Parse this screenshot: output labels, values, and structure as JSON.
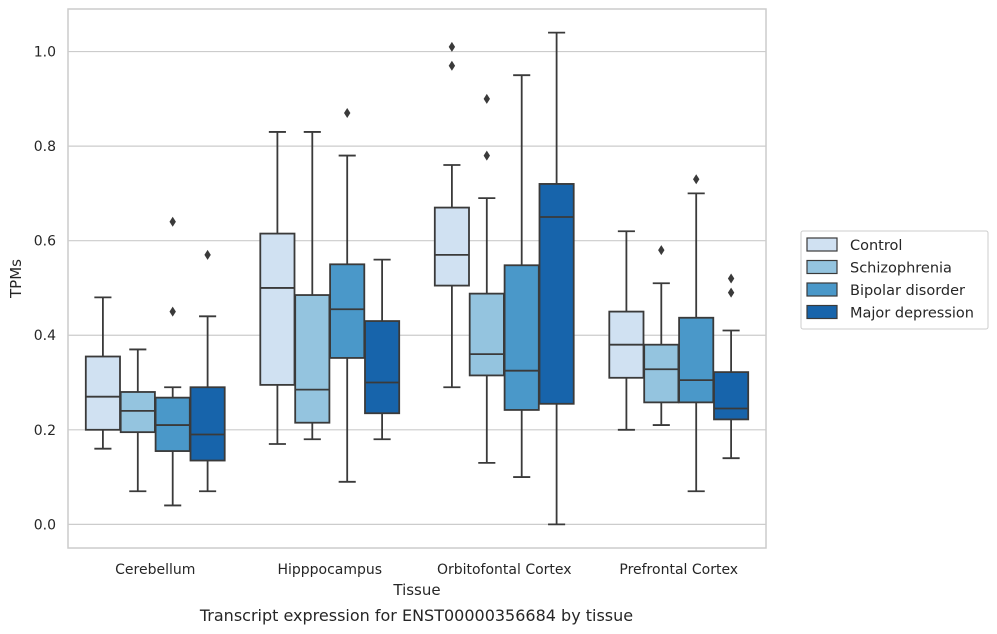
{
  "caption": "Transcript expression for ENST00000356684 by tissue",
  "chart_data": {
    "type": "box",
    "title": "",
    "xlabel": "Tissue",
    "ylabel": "TPMs",
    "ylim": [
      -0.05,
      1.09
    ],
    "yticks": [
      0.0,
      0.2,
      0.4,
      0.6,
      0.8,
      1.0
    ],
    "grid": true,
    "legend_placement": "right",
    "categories": [
      "Cerebellum",
      "Hipppocampus",
      "Orbitofontal Cortex",
      "Prefrontal Cortex"
    ],
    "series": [
      {
        "name": "Control",
        "color": "#d0e1f2",
        "boxes": [
          {
            "whislo": 0.16,
            "q1": 0.2,
            "med": 0.27,
            "q3": 0.355,
            "whishi": 0.48,
            "fliers": []
          },
          {
            "whislo": 0.17,
            "q1": 0.295,
            "med": 0.5,
            "q3": 0.615,
            "whishi": 0.83,
            "fliers": []
          },
          {
            "whislo": 0.29,
            "q1": 0.505,
            "med": 0.57,
            "q3": 0.67,
            "whishi": 0.76,
            "fliers": [
              0.97,
              1.01
            ]
          },
          {
            "whislo": 0.2,
            "q1": 0.31,
            "med": 0.38,
            "q3": 0.45,
            "whishi": 0.62,
            "fliers": []
          }
        ]
      },
      {
        "name": "Schizophrenia",
        "color": "#94c4df",
        "boxes": [
          {
            "whislo": 0.07,
            "q1": 0.195,
            "med": 0.24,
            "q3": 0.28,
            "whishi": 0.37,
            "fliers": []
          },
          {
            "whislo": 0.18,
            "q1": 0.215,
            "med": 0.285,
            "q3": 0.485,
            "whishi": 0.83,
            "fliers": []
          },
          {
            "whislo": 0.13,
            "q1": 0.315,
            "med": 0.36,
            "q3": 0.488,
            "whishi": 0.69,
            "fliers": [
              0.78,
              0.9
            ]
          },
          {
            "whislo": 0.21,
            "q1": 0.258,
            "med": 0.328,
            "q3": 0.38,
            "whishi": 0.51,
            "fliers": [
              0.58
            ]
          }
        ]
      },
      {
        "name": "Bipolar disorder",
        "color": "#4a98c9",
        "boxes": [
          {
            "whislo": 0.04,
            "q1": 0.155,
            "med": 0.21,
            "q3": 0.268,
            "whishi": 0.29,
            "fliers": [
              0.45,
              0.64
            ]
          },
          {
            "whislo": 0.09,
            "q1": 0.352,
            "med": 0.455,
            "q3": 0.55,
            "whishi": 0.78,
            "fliers": [
              0.87
            ]
          },
          {
            "whislo": 0.1,
            "q1": 0.242,
            "med": 0.325,
            "q3": 0.548,
            "whishi": 0.95,
            "fliers": []
          },
          {
            "whislo": 0.07,
            "q1": 0.258,
            "med": 0.305,
            "q3": 0.437,
            "whishi": 0.7,
            "fliers": [
              0.73
            ]
          }
        ]
      },
      {
        "name": "Major depression",
        "color": "#1764ab",
        "boxes": [
          {
            "whislo": 0.07,
            "q1": 0.135,
            "med": 0.19,
            "q3": 0.29,
            "whishi": 0.44,
            "fliers": [
              0.57
            ]
          },
          {
            "whislo": 0.18,
            "q1": 0.235,
            "med": 0.3,
            "q3": 0.43,
            "whishi": 0.56,
            "fliers": []
          },
          {
            "whislo": 0.0,
            "q1": 0.255,
            "med": 0.65,
            "q3": 0.72,
            "whishi": 1.04,
            "fliers": []
          },
          {
            "whislo": 0.14,
            "q1": 0.222,
            "med": 0.245,
            "q3": 0.322,
            "whishi": 0.41,
            "fliers": [
              0.49,
              0.52
            ]
          }
        ]
      }
    ]
  }
}
